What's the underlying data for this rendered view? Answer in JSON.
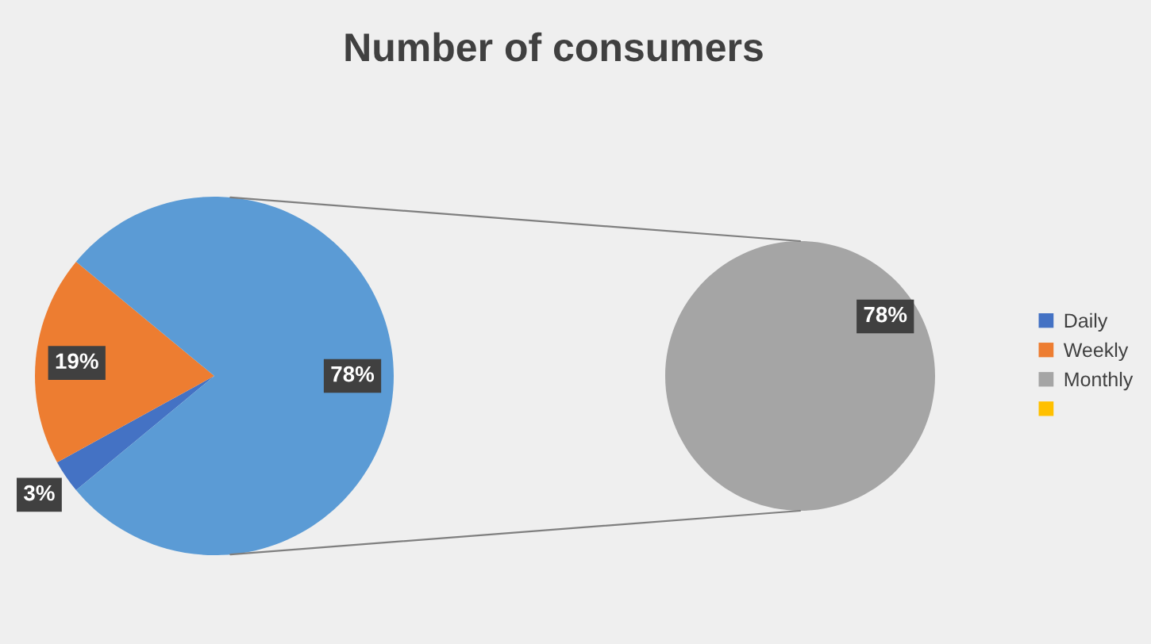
{
  "chart_data": [
    {
      "type": "pie",
      "title": "Number of consumers",
      "categories": [
        "Daily",
        "Weekly",
        null
      ],
      "values": [
        3,
        19,
        78
      ],
      "colors": [
        "#4472c4",
        "#ed7d31",
        "#5b9bd5"
      ],
      "value_labels": [
        "3%",
        "19%",
        "78%"
      ],
      "legend": "right"
    },
    {
      "type": "pie",
      "categories": [
        "Monthly",
        null
      ],
      "values": [
        78,
        null
      ],
      "colors": [
        "#a5a5a5",
        "#ffc000"
      ],
      "value_labels": [
        "78%",
        null
      ],
      "legend": "right"
    }
  ]
}
